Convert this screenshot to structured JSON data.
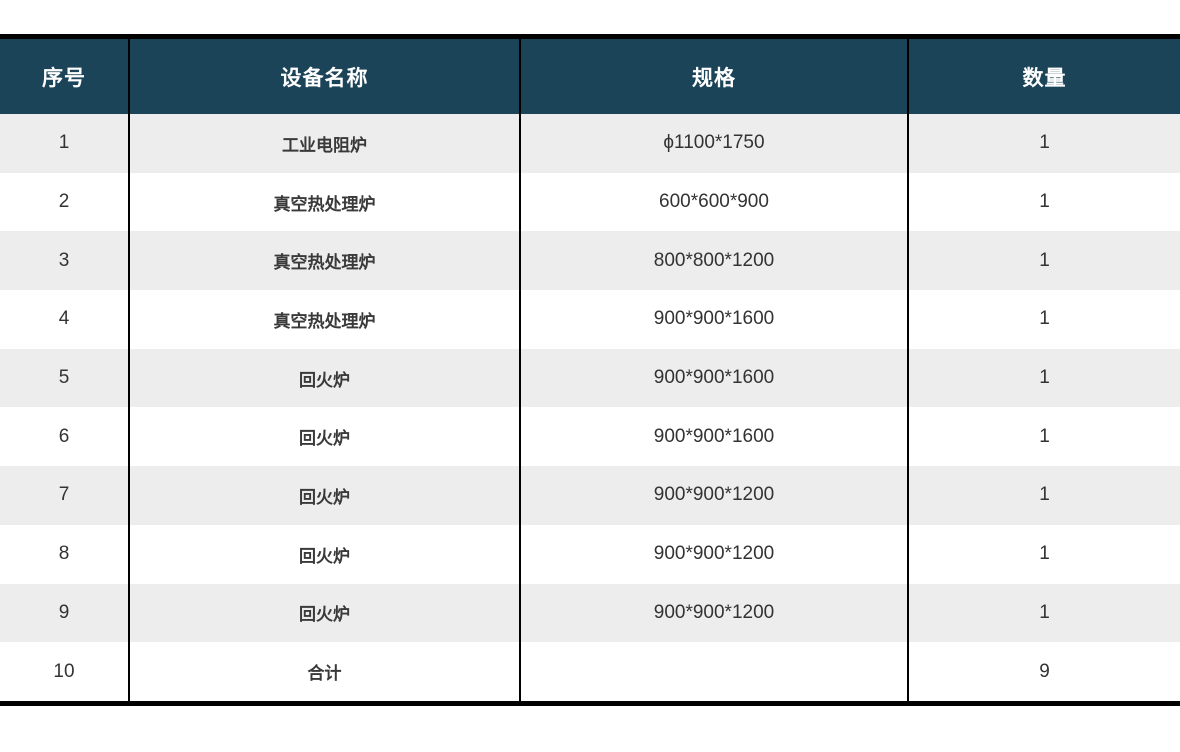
{
  "table": {
    "columns": [
      {
        "key": "no",
        "label": "序号"
      },
      {
        "key": "name",
        "label": "设备名称"
      },
      {
        "key": "spec",
        "label": "规格"
      },
      {
        "key": "qty",
        "label": "数量"
      }
    ],
    "rows": [
      {
        "no": "1",
        "name": "工业电阻炉",
        "spec": "ϕ1100*1750",
        "qty": "1"
      },
      {
        "no": "2",
        "name": "真空热处理炉",
        "spec": "600*600*900",
        "qty": "1"
      },
      {
        "no": "3",
        "name": "真空热处理炉",
        "spec": "800*800*1200",
        "qty": "1"
      },
      {
        "no": "4",
        "name": "真空热处理炉",
        "spec": "900*900*1600",
        "qty": "1"
      },
      {
        "no": "5",
        "name": "回火炉",
        "spec": "900*900*1600",
        "qty": "1"
      },
      {
        "no": "6",
        "name": "回火炉",
        "spec": "900*900*1600",
        "qty": "1"
      },
      {
        "no": "7",
        "name": "回火炉",
        "spec": "900*900*1200",
        "qty": "1"
      },
      {
        "no": "8",
        "name": "回火炉",
        "spec": "900*900*1200",
        "qty": "1"
      },
      {
        "no": "9",
        "name": "回火炉",
        "spec": "900*900*1200",
        "qty": "1"
      },
      {
        "no": "10",
        "name": "合计",
        "spec": "",
        "qty": "9"
      }
    ]
  },
  "colors": {
    "header_bg": "#1b4458",
    "header_text": "#ffffff",
    "stripe_odd": "#ededed",
    "stripe_even": "#ffffff",
    "border": "#000000",
    "body_text": "#333333"
  }
}
